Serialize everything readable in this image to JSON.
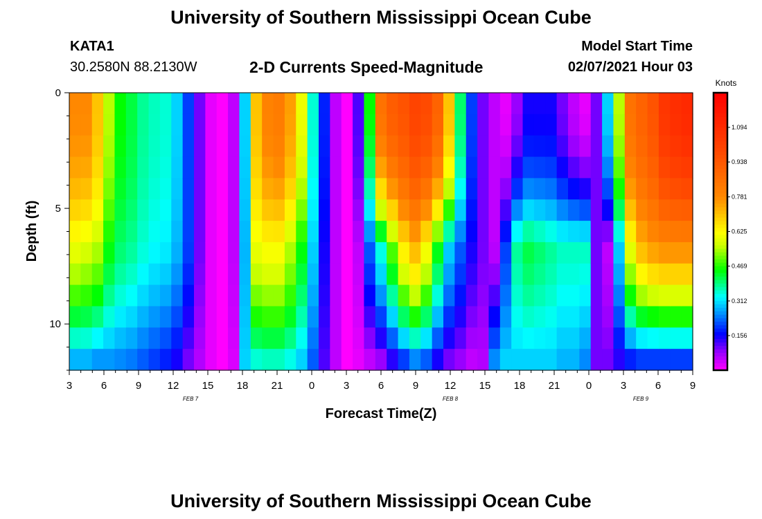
{
  "header": {
    "title": "University of Southern Mississippi Ocean Cube",
    "station_id": "KATA1",
    "station_coords": "30.2580N 88.2130W",
    "plot_title": "2-D Currents Speed-Magnitude",
    "model_start_label": "Model Start Time",
    "model_start_value": "02/07/2021 Hour 03"
  },
  "footer": {
    "title": "University of Southern Mississippi Ocean Cube"
  },
  "chart_data": {
    "type": "heatmap",
    "title": "2-D Currents Speed-Magnitude",
    "xlabel": "Forecast Time(Z)",
    "ylabel": "Depth (ft)",
    "x_tick_labels": [
      "3",
      "6",
      "9",
      "12",
      "15",
      "18",
      "21",
      "0",
      "3",
      "6",
      "9",
      "12",
      "15",
      "18",
      "21",
      "0",
      "3",
      "6",
      "9"
    ],
    "date_labels": [
      {
        "text": "FEB 7",
        "at_tick": 3.5
      },
      {
        "text": "FEB 8",
        "at_tick": 11
      },
      {
        "text": "FEB 9",
        "at_tick": 16.5
      }
    ],
    "x_range_hours": [
      0,
      54
    ],
    "y_ticks": [
      0,
      5,
      10
    ],
    "y_tick_labels": [
      "0",
      "5",
      "10"
    ],
    "y_range_ft": [
      0,
      12
    ],
    "colorbar": {
      "label": "Knots",
      "tick_values": [
        1.094,
        0.938,
        0.781,
        0.625,
        0.469,
        0.312,
        0.156
      ],
      "tick_labels": [
        "1.094",
        "0.938",
        "0.781",
        "0.625",
        "0.469",
        "0.312",
        "0.156"
      ],
      "range": [
        0,
        1.25
      ],
      "stops": [
        {
          "v": 0.0,
          "color": "#ff00ff"
        },
        {
          "v": 0.08,
          "color": "#9900ff"
        },
        {
          "v": 0.16,
          "color": "#0000ff"
        },
        {
          "v": 0.26,
          "color": "#0099ff"
        },
        {
          "v": 0.33,
          "color": "#00ffff"
        },
        {
          "v": 0.45,
          "color": "#00ff00"
        },
        {
          "v": 0.56,
          "color": "#ccff00"
        },
        {
          "v": 0.62,
          "color": "#ffff00"
        },
        {
          "v": 0.78,
          "color": "#ff8800"
        },
        {
          "v": 1.0,
          "color": "#ff4400"
        },
        {
          "v": 1.25,
          "color": "#ff0000"
        }
      ]
    },
    "grid": {
      "time_hours": [
        0,
        1,
        2,
        3,
        4,
        5,
        6,
        7,
        8,
        9,
        10,
        11,
        12,
        13,
        14,
        15,
        16,
        17,
        18,
        19,
        20,
        21,
        22,
        23,
        24,
        25,
        26,
        27,
        28,
        29,
        30,
        31,
        32,
        33,
        34,
        35,
        36,
        37,
        38,
        39,
        40,
        41,
        42,
        43,
        44,
        45,
        46,
        47,
        48,
        49,
        50,
        51,
        52,
        53,
        54
      ],
      "depth_ft": [
        0,
        1,
        2,
        3,
        4,
        5,
        6,
        7,
        8,
        9,
        10,
        11,
        12
      ],
      "surface_speed": [
        0.78,
        0.78,
        0.7,
        0.55,
        0.45,
        0.42,
        0.38,
        0.36,
        0.35,
        0.3,
        0.2,
        0.1,
        0.02,
        0.0,
        0.05,
        0.3,
        0.7,
        0.8,
        0.82,
        0.75,
        0.6,
        0.35,
        0.18,
        0.05,
        0.0,
        0.12,
        0.45,
        0.85,
        0.92,
        0.95,
        1.0,
        0.98,
        0.9,
        0.7,
        0.4,
        0.2,
        0.1,
        0.05,
        0.02,
        0.08,
        0.15,
        0.15,
        0.15,
        0.1,
        0.05,
        0.02,
        0.1,
        0.3,
        0.55,
        0.85,
        0.9,
        0.95,
        1.05,
        1.08,
        1.1
      ],
      "mid_speed": [
        0.6,
        0.58,
        0.55,
        0.45,
        0.4,
        0.38,
        0.35,
        0.33,
        0.32,
        0.28,
        0.2,
        0.1,
        0.02,
        0.0,
        0.05,
        0.28,
        0.6,
        0.62,
        0.62,
        0.55,
        0.45,
        0.3,
        0.15,
        0.05,
        0.0,
        0.05,
        0.22,
        0.35,
        0.5,
        0.65,
        0.72,
        0.62,
        0.45,
        0.3,
        0.22,
        0.15,
        0.1,
        0.05,
        0.2,
        0.38,
        0.42,
        0.4,
        0.38,
        0.36,
        0.36,
        0.36,
        0.1,
        0.05,
        0.3,
        0.6,
        0.72,
        0.76,
        0.78,
        0.78,
        0.78
      ],
      "bottom_speed": [
        0.28,
        0.28,
        0.26,
        0.26,
        0.25,
        0.24,
        0.22,
        0.2,
        0.18,
        0.15,
        0.1,
        0.06,
        0.02,
        0.0,
        0.03,
        0.3,
        0.35,
        0.36,
        0.36,
        0.34,
        0.3,
        0.22,
        0.12,
        0.05,
        0.0,
        0.02,
        0.05,
        0.08,
        0.14,
        0.2,
        0.25,
        0.22,
        0.15,
        0.1,
        0.08,
        0.05,
        0.06,
        0.25,
        0.3,
        0.3,
        0.3,
        0.3,
        0.3,
        0.28,
        0.28,
        0.25,
        0.1,
        0.1,
        0.14,
        0.18,
        0.2,
        0.2,
        0.2,
        0.2,
        0.2
      ]
    }
  }
}
